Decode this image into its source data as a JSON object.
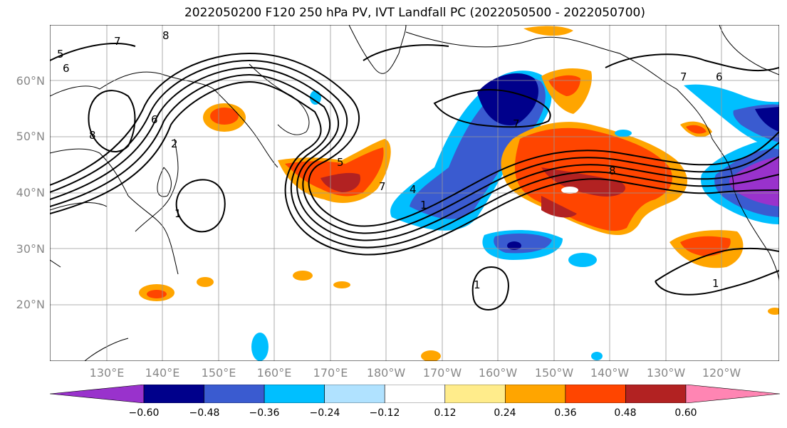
{
  "title": "2022050200 F120 250 hPa PV, IVT Landfall PC (2022050500 - 2022050700)",
  "lat_labels": [
    "60°N",
    "50°N",
    "40°N",
    "30°N",
    "20°N"
  ],
  "lon_labels": [
    "130°E",
    "140°E",
    "150°E",
    "160°E",
    "170°E",
    "180°W",
    "170°W",
    "160°W",
    "150°W",
    "140°W",
    "130°W",
    "120°W"
  ],
  "colorbar": {
    "ticks": [
      "−0.60",
      "−0.48",
      "−0.36",
      "−0.24",
      "−0.12",
      "0.12",
      "0.24",
      "0.36",
      "0.48",
      "0.60"
    ],
    "colors": [
      "#9932cc",
      "#00008b",
      "#3a5bd0",
      "#00bfff",
      "#b0e2ff",
      "#ffffff",
      "#ffec8b",
      "#ffa500",
      "#ff4500",
      "#b22222",
      "#ff85b3"
    ]
  },
  "contour_labels": [
    "8",
    "7",
    "6",
    "5",
    "6",
    "8",
    "2",
    "5",
    "7",
    "4",
    "1",
    "7",
    "1",
    "8",
    "6",
    "7",
    "1",
    "1"
  ]
}
